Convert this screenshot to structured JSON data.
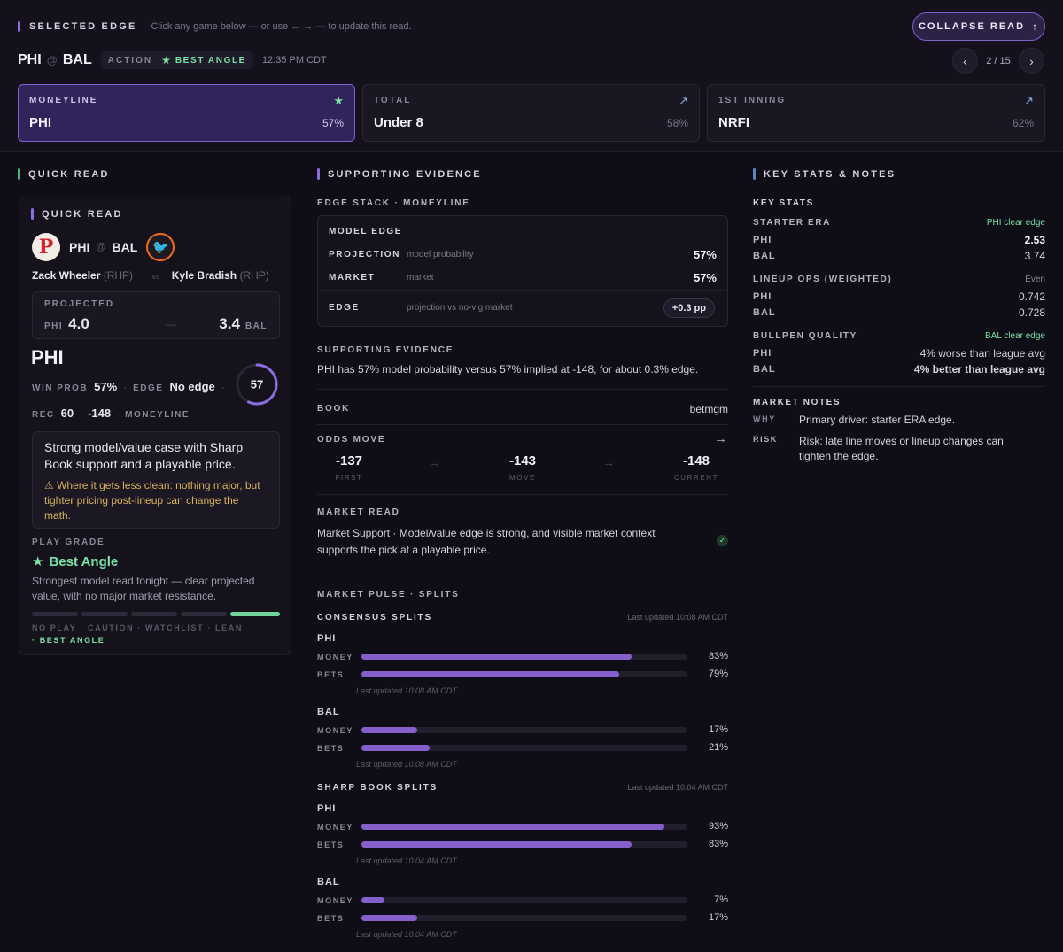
{
  "header": {
    "selected_edge": "SELECTED EDGE",
    "hint": "Click any game below — or use ← → — to update this read.",
    "collapse_label": "COLLAPSE READ",
    "collapse_icon": "arrow-up",
    "away_team": "PHI",
    "at_sign": "@",
    "home_team": "BAL",
    "action_label": "ACTION",
    "best_angle_label": "BEST ANGLE",
    "time": "12:35 PM CDT",
    "page": "2 / 15"
  },
  "cards": [
    {
      "label": "MONEYLINE",
      "value": "PHI",
      "pct": "57%",
      "icon": "star"
    },
    {
      "label": "TOTAL",
      "value": "Under 8",
      "pct": "58%",
      "icon": "arrow-up-right"
    },
    {
      "label": "1ST INNING",
      "value": "NRFI",
      "pct": "62%",
      "icon": "arrow-up-right"
    }
  ],
  "quick_read": {
    "section_title": "QUICK READ",
    "panel_title": "QUICK READ",
    "away": "PHI",
    "at": "@",
    "home": "BAL",
    "away_pitcher": "Zack Wheeler",
    "away_hand": "(RHP)",
    "vs": "vs",
    "home_pitcher": "Kyle Bradish",
    "home_hand": "(RHP)",
    "projected_label": "PROJECTED",
    "proj_away_team": "PHI",
    "proj_away_score": "4.0",
    "proj_dash": "—",
    "proj_home_score": "3.4",
    "proj_home_team": "BAL",
    "pick": "PHI",
    "win_prob_label": "WIN PROB",
    "win_prob": "57%",
    "edge_label": "EDGE",
    "edge_value": "No edge",
    "rec_label": "REC",
    "rec_value": "60",
    "rec_odds": "-148",
    "rec_market": "MONEYLINE",
    "ring_value": "57",
    "ring_fraction": 0.57,
    "summary": "Strong model/value case with Sharp Book support and a playable price.",
    "warning": "Where it gets less clean: nothing major, but tighter pricing post-lineup can change the math.",
    "play_grade_label": "PLAY GRADE",
    "grade": "Best Angle",
    "grade_desc": "Strongest model read tonight — clear projected value, with no major market resistance.",
    "scale_text": "NO PLAY · CAUTION · WATCHLIST · LEAN",
    "scale_active": "· BEST ANGLE"
  },
  "evidence": {
    "section_title": "SUPPORTING EVIDENCE",
    "edge_stack_label": "EDGE STACK · MONEYLINE",
    "model_edge_title": "MODEL EDGE",
    "rows": [
      {
        "label": "PROJECTION",
        "sub": "model probability",
        "value": "57%"
      },
      {
        "label": "MARKET",
        "sub": "market",
        "value": "57%"
      },
      {
        "label": "EDGE",
        "sub": "projection vs no-vig market",
        "value": "+0.3 pp"
      }
    ],
    "supporting_label": "SUPPORTING EVIDENCE",
    "supporting_text": "PHI has 57% model probability versus 57% implied at -148, for about 0.3% edge.",
    "book_label": "BOOK",
    "book_value": "betmgm",
    "odds_move_label": "ODDS MOVE",
    "odds": [
      {
        "value": "-137",
        "sub": "FIRST"
      },
      {
        "value": "-143",
        "sub": "MOVE"
      },
      {
        "value": "-148",
        "sub": "CURRENT"
      }
    ],
    "market_read_label": "MARKET READ",
    "market_read_text": "Market Support · Model/value edge is strong, and visible market context supports the pick at a playable price.",
    "pulse_label": "MARKET PULSE · SPLITS",
    "consensus_label": "CONSENSUS SPLITS",
    "consensus_updated": "Last updated 10:08 AM CDT",
    "sharp_label": "SHARP BOOK SPLITS",
    "sharp_updated": "Last updated 10:04 AM CDT",
    "money_label": "MONEY",
    "bets_label": "BETS",
    "consensus": [
      {
        "team": "PHI",
        "money": 83,
        "money_text": "83%",
        "bets": 79,
        "bets_text": "79%",
        "updated": "Last updated 10:08 AM CDT"
      },
      {
        "team": "BAL",
        "money": 17,
        "money_text": "17%",
        "bets": 21,
        "bets_text": "21%",
        "updated": "Last updated 10:08 AM CDT"
      }
    ],
    "sharp": [
      {
        "team": "PHI",
        "money": 93,
        "money_text": "93%",
        "bets": 83,
        "bets_text": "83%",
        "updated": "Last updated 10:04 AM CDT"
      },
      {
        "team": "BAL",
        "money": 7,
        "money_text": "7%",
        "bets": 17,
        "bets_text": "17%",
        "updated": "Last updated 10:04 AM CDT"
      }
    ]
  },
  "stats": {
    "section_title": "KEY STATS & NOTES",
    "key_stats_label": "KEY STATS",
    "starter_era_label": "STARTER ERA",
    "starter_era_tag": "PHI clear edge",
    "era_phi_team": "PHI",
    "era_phi": "2.53",
    "era_bal_team": "BAL",
    "era_bal": "3.74",
    "ops_label": "LINEUP OPS (WEIGHTED)",
    "ops_tag": "Even",
    "ops_phi_team": "PHI",
    "ops_phi": "0.742",
    "ops_bal_team": "BAL",
    "ops_bal": "0.728",
    "bullpen_label": "BULLPEN QUALITY",
    "bullpen_tag": "BAL clear edge",
    "bp_phi_team": "PHI",
    "bp_phi": "4% worse than league avg",
    "bp_bal_team": "BAL",
    "bp_bal": "4% better than league avg",
    "market_notes_label": "MARKET NOTES",
    "why_label": "WHY",
    "why_text": "Primary driver: starter ERA edge.",
    "risk_label": "RISK",
    "risk_text": "Risk: late line moves or lineup changes can tighten the edge."
  },
  "colors": {
    "accent": "#8d6cde",
    "green": "#7be3a4",
    "bar": "#8560cd",
    "risk": "#e7cf63"
  }
}
